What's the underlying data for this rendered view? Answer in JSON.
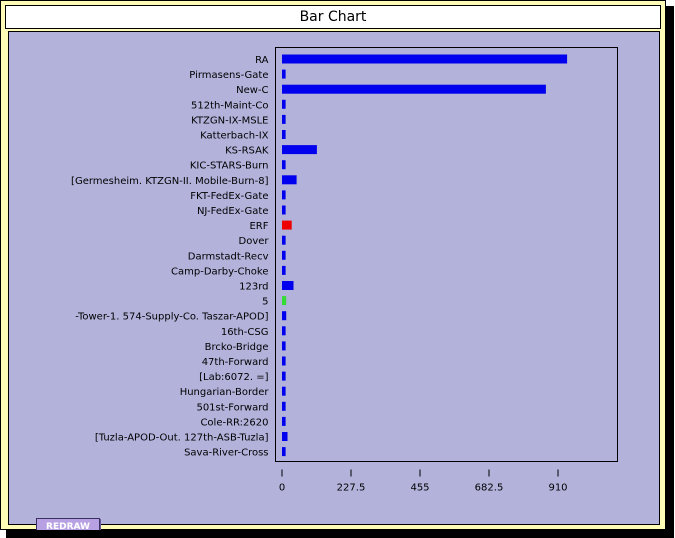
{
  "window": {
    "title": "Bar Chart"
  },
  "controls": {
    "redraw_label": "REDRAW"
  },
  "chart_data": {
    "type": "bar",
    "orientation": "horizontal",
    "title": "Bar Chart",
    "xlabel": "",
    "ylabel": "",
    "xlim": [
      0,
      1100
    ],
    "xticks": [
      "0",
      "227.5",
      "455",
      "682.5",
      "910"
    ],
    "xtick_values": [
      0,
      227.5,
      455,
      682.5,
      910
    ],
    "grid": false,
    "categories": [
      "RA",
      "Pirmasens-Gate",
      "New-C",
      "512th-Maint-Co",
      "KTZGN-IX-MSLE",
      "Katterbach-IX",
      "KS-RSAK",
      "KIC-STARS-Burn",
      "[Germesheim. KTZGN-II. Mobile-Burn-8]",
      "FKT-FedEx-Gate",
      "NJ-FedEx-Gate",
      "ERF",
      "Dover",
      "Darmstadt-Recv",
      "Camp-Darby-Choke",
      "123rd",
      "5",
      "-Tower-1. 574-Supply-Co. Taszar-APOD]",
      "16th-CSG",
      "Brcko-Bridge",
      "47th-Forward",
      "[Lab:6072. =]",
      "Hungarian-Border",
      "501st-Forward",
      "Cole-RR:2620",
      "[Tuzla-APOD-Out. 127th-ASB-Tuzla]",
      "Sava-River-Cross"
    ],
    "values": [
      940,
      12,
      870,
      12,
      12,
      12,
      115,
      12,
      48,
      12,
      12,
      32,
      12,
      12,
      12,
      38,
      14,
      14,
      12,
      12,
      12,
      12,
      12,
      12,
      12,
      18,
      12
    ],
    "colors": [
      "#0000ee",
      "#0000ee",
      "#0000ee",
      "#0000ee",
      "#0000ee",
      "#0000ee",
      "#0000ee",
      "#0000ee",
      "#0000ee",
      "#0000ee",
      "#0000ee",
      "#ee0000",
      "#0000ee",
      "#0000ee",
      "#0000ee",
      "#0000ee",
      "#33dd33",
      "#0000ee",
      "#0000ee",
      "#0000ee",
      "#0000ee",
      "#0000ee",
      "#0000ee",
      "#0000ee",
      "#0000ee",
      "#0000ee",
      "#0000ee"
    ]
  }
}
